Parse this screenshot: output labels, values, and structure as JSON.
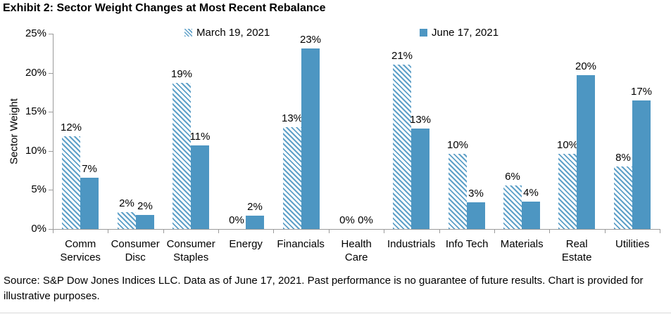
{
  "title": "Exhibit 2: Sector Weight Changes at Most Recent Rebalance",
  "footer": "Source: S&P Dow Jones Indices LLC. Data as of June 17, 2021. Past performance is no guarantee of future results. Chart is provided for illustrative purposes.",
  "colors": {
    "bar_solid": "#4D96C2",
    "bar_hatch_stripe": "#5EA0C8",
    "axis": "#9B9B9B",
    "text": "#000000",
    "divider": "#D9D9D9"
  },
  "chart_data": {
    "type": "bar",
    "title": "Exhibit 2: Sector Weight Changes at Most Recent Rebalance",
    "xlabel": "",
    "ylabel": "Sector Weight",
    "ylim": [
      0,
      25
    ],
    "ytick_labels": [
      "0%",
      "5%",
      "10%",
      "15%",
      "20%",
      "25%"
    ],
    "grid": false,
    "legend_position": "top",
    "categories": [
      "Comm Services",
      "Consumer Disc",
      "Consumer Staples",
      "Energy",
      "Financials",
      "Health Care",
      "Industrials",
      "Info Tech",
      "Materials",
      "Real Estate",
      "Utilities"
    ],
    "category_display_lines": [
      [
        "Comm",
        "Services"
      ],
      [
        "Consumer",
        "Disc"
      ],
      [
        "Consumer",
        "Staples"
      ],
      [
        "Energy"
      ],
      [
        "Financials"
      ],
      [
        "Health",
        "Care"
      ],
      [
        "Industrials"
      ],
      [
        "Info Tech"
      ],
      [
        "Materials"
      ],
      [
        "Real",
        "Estate"
      ],
      [
        "Utilities"
      ]
    ],
    "series": [
      {
        "name": "March 19, 2021",
        "pattern": "hatched",
        "values": [
          11.9,
          2.2,
          18.7,
          0,
          13.0,
          0,
          21.0,
          9.6,
          5.6,
          9.6,
          8.0
        ],
        "data_labels": [
          "12%",
          "2%",
          "19%",
          "0%",
          "13%",
          "0%",
          "21%",
          "10%",
          "6%",
          "10%",
          "8%"
        ]
      },
      {
        "name": "June 17, 2021",
        "pattern": "solid",
        "values": [
          6.6,
          1.8,
          10.7,
          1.7,
          23.1,
          0,
          12.9,
          3.4,
          3.5,
          19.7,
          16.5
        ],
        "data_labels": [
          "7%",
          "2%",
          "11%",
          "2%",
          "23%",
          "0%",
          "13%",
          "3%",
          "4%",
          "20%",
          "17%"
        ]
      }
    ]
  }
}
